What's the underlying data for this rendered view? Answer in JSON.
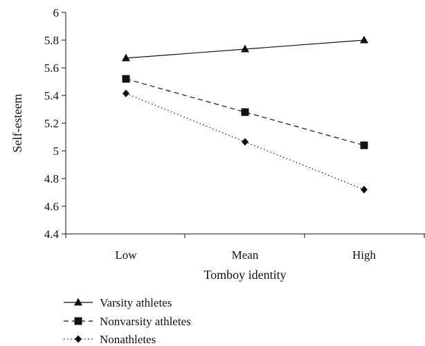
{
  "chart_data": {
    "type": "line",
    "title": "",
    "xlabel": "Tomboy identity",
    "ylabel": "Self-esteem",
    "categories": [
      "Low",
      "Mean",
      "High"
    ],
    "ylim": [
      4.4,
      6
    ],
    "yticks": [
      "4.4",
      "4.6",
      "4.8",
      "5",
      "5.2",
      "5.4",
      "5.6",
      "5.8",
      "6"
    ],
    "grid": false,
    "legend_position": "bottom-left",
    "series": [
      {
        "name": "Varsity athletes",
        "values": [
          5.67,
          5.735,
          5.8
        ],
        "marker": "triangle",
        "dash": "solid",
        "color": "#111111"
      },
      {
        "name": "Nonvarsity athletes",
        "values": [
          5.52,
          5.28,
          5.04
        ],
        "marker": "square",
        "dash": "dashed",
        "color": "#111111"
      },
      {
        "name": "Nonathletes",
        "values": [
          5.415,
          5.065,
          4.72
        ],
        "marker": "diamond",
        "dash": "dotted",
        "color": "#111111"
      }
    ]
  }
}
